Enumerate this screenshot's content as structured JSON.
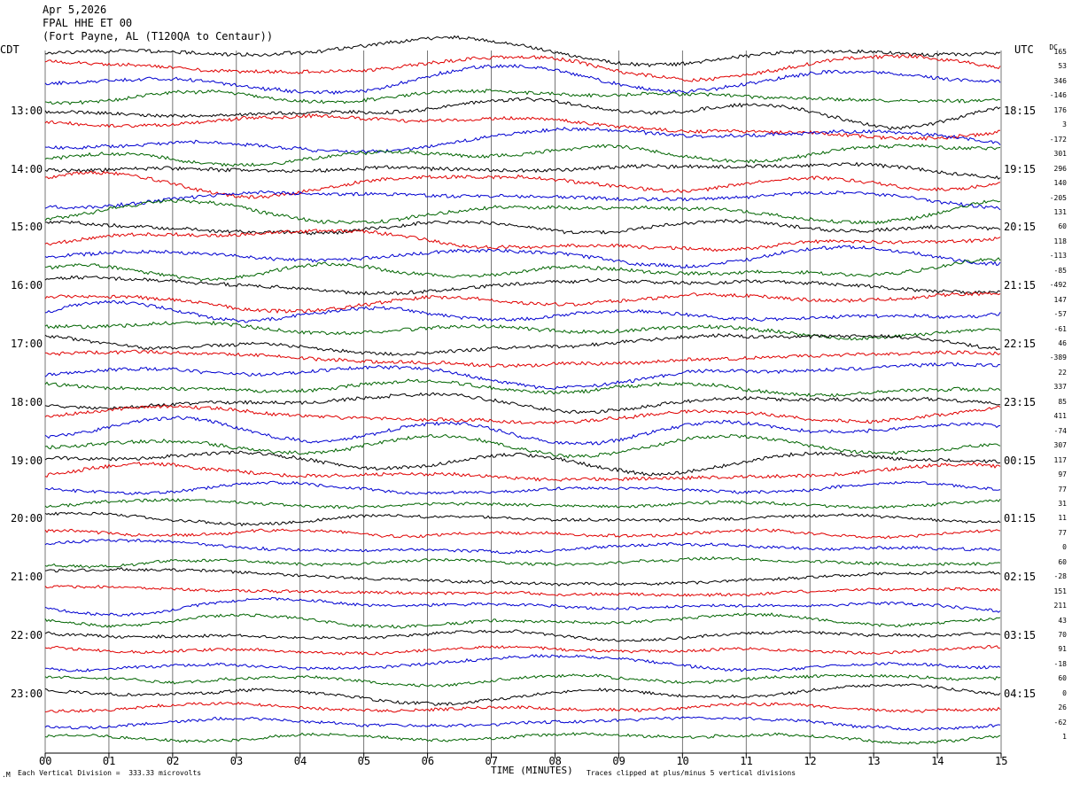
{
  "header": {
    "date": "Apr 5,2026",
    "station": "FPAL HHE ET 00",
    "location": "(Fort Payne, AL (T120QA to Centaur))"
  },
  "axis": {
    "left_unit": "CDT",
    "right_unit": "UTC",
    "dc_label": "DC",
    "x_title": "TIME (MINUTES)",
    "left_hours": [
      "13:00",
      "14:00",
      "15:00",
      "16:00",
      "17:00",
      "18:00",
      "19:00",
      "20:00",
      "21:00",
      "22:00",
      "23:00"
    ],
    "right_hours": [
      "18:15",
      "19:15",
      "20:15",
      "21:15",
      "22:15",
      "23:15",
      "00:15",
      "01:15",
      "02:15",
      "03:15",
      "04:15"
    ],
    "x_ticks": [
      "00",
      "01",
      "02",
      "03",
      "04",
      "05",
      "06",
      "07",
      "08",
      "09",
      "10",
      "11",
      "12",
      "13",
      "14",
      "15"
    ]
  },
  "footer": {
    "scale": "Each Vertical Division =  333.33 microvolts",
    "clip": "Traces clipped at plus/minus 5 vertical divisions"
  },
  "chart_data": {
    "type": "line",
    "title": "FPAL HHE ET 00",
    "xlabel": "TIME (MINUTES)",
    "xlim": [
      0,
      15
    ],
    "trace_count": 48,
    "minutes_per_trace": 15,
    "colors": [
      "#000000",
      "#e00000",
      "#0000d0",
      "#006400"
    ],
    "dc_offsets": [
      165,
      53,
      346,
      -146,
      176,
      3,
      -172,
      301,
      296,
      140,
      -205,
      131,
      60,
      118,
      -113,
      -85,
      -492,
      147,
      -57,
      -61,
      46,
      -389,
      22,
      337,
      85,
      411,
      -74,
      307,
      117,
      97,
      77,
      31,
      11,
      77,
      0,
      60,
      -28,
      151,
      211,
      43,
      70,
      91,
      -18,
      60,
      0,
      26,
      -62,
      1
    ],
    "scale_microvolts_per_division": 333.33
  }
}
